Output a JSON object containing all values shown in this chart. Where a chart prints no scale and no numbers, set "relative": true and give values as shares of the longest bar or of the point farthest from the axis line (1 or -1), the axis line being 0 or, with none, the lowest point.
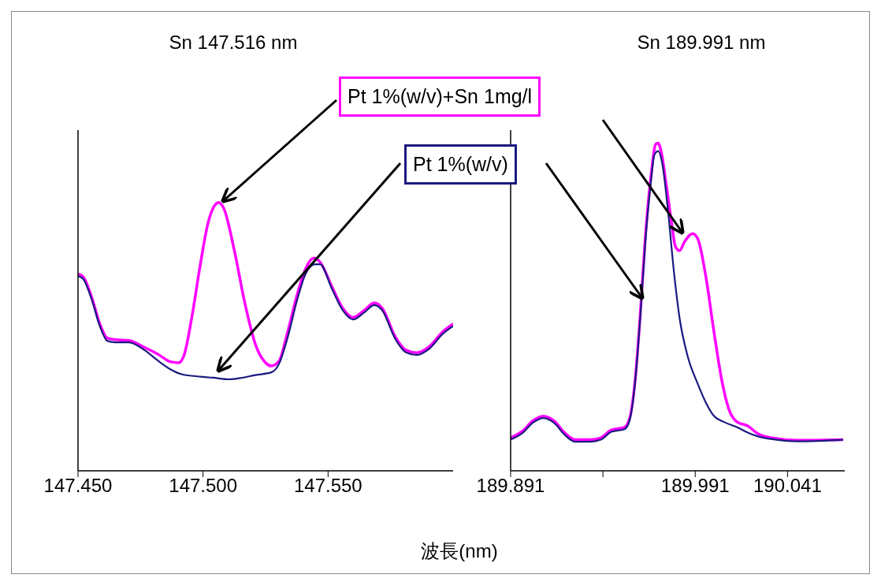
{
  "chart_data": [
    {
      "type": "line",
      "title": "Sn 147.516 nm",
      "xlabel": "波長(nm)",
      "relative": true,
      "xlim": [
        147.45,
        147.6
      ],
      "xticks": [
        {
          "value": 147.45,
          "label": "147.450"
        },
        {
          "value": 147.5,
          "label": "147.500"
        },
        {
          "value": 147.55,
          "label": "147.550"
        }
      ],
      "series": [
        {
          "name": "Pt 1%(w/v)+Sn 1mg/l",
          "color": "#ff00ff",
          "x": [
            147.45,
            147.452,
            147.4555,
            147.4587,
            147.4618,
            147.465,
            147.4703,
            147.4766,
            147.4819,
            147.4872,
            147.4903,
            147.4924,
            147.4956,
            147.4988,
            147.5019,
            147.5056,
            147.5062,
            147.5083,
            147.5125,
            147.5167,
            147.521,
            147.5252,
            147.5273,
            147.5305,
            147.5336,
            147.5379,
            147.541,
            147.5442,
            147.5468,
            147.5516,
            147.5558,
            147.56,
            147.5643,
            147.5685,
            147.5716,
            147.5769,
            147.5811,
            147.5854,
            147.5907,
            147.5959,
            147.6
          ],
          "values": [
            0.734,
            0.724,
            0.646,
            0.548,
            0.494,
            0.489,
            0.486,
            0.46,
            0.435,
            0.406,
            0.403,
            0.431,
            0.577,
            0.763,
            0.92,
            0.998,
            1,
            0.978,
            0.822,
            0.626,
            0.47,
            0.401,
            0.391,
            0.411,
            0.509,
            0.665,
            0.753,
            0.793,
            0.778,
            0.685,
            0.607,
            0.572,
            0.597,
            0.626,
            0.607,
            0.499,
            0.45,
            0.44,
            0.465,
            0.519,
            0.548
          ]
        },
        {
          "name": "Pt 1%(w/v)",
          "color": "#1a1a80",
          "x": [
            147.45,
            147.452,
            147.4555,
            147.4587,
            147.4618,
            147.465,
            147.4703,
            147.4766,
            147.4819,
            147.4872,
            147.4914,
            147.4977,
            147.504,
            147.5104,
            147.5157,
            147.521,
            147.5273,
            147.5305,
            147.5336,
            147.5379,
            147.541,
            147.5447,
            147.5468,
            147.5516,
            147.5558,
            147.56,
            147.5643,
            147.5685,
            147.5716,
            147.5769,
            147.5811,
            147.5854,
            147.5907,
            147.5959,
            147.6
          ],
          "values": [
            0.726,
            0.716,
            0.638,
            0.54,
            0.484,
            0.479,
            0.479,
            0.45,
            0.411,
            0.377,
            0.36,
            0.352,
            0.347,
            0.341,
            0.347,
            0.357,
            0.367,
            0.401,
            0.489,
            0.646,
            0.734,
            0.77,
            0.77,
            0.677,
            0.599,
            0.564,
            0.589,
            0.618,
            0.599,
            0.491,
            0.442,
            0.432,
            0.457,
            0.511,
            0.54
          ]
        }
      ]
    },
    {
      "type": "line",
      "title": "Sn 189.991 nm",
      "relative": true,
      "xlim": [
        189.891,
        190.072
      ],
      "xticks": [
        {
          "value": 189.891,
          "label": "189.891"
        },
        {
          "value": 189.941,
          "label": null
        },
        {
          "value": 189.991,
          "label": "189.991"
        },
        {
          "value": 190.041,
          "label": "190.041"
        }
      ],
      "series": [
        {
          "color": "#ff00ff",
          "x": [
            189.891,
            189.8974,
            189.9031,
            189.9087,
            189.9144,
            189.9201,
            189.9258,
            189.9343,
            189.9399,
            189.9456,
            189.9527,
            189.9555,
            189.9584,
            189.9612,
            189.964,
            189.9669,
            189.9697,
            189.9709,
            189.9726,
            189.9754,
            189.9782,
            189.9803,
            189.9825,
            189.9853,
            189.9896,
            189.9924,
            189.9967,
            190.0009,
            190.0052,
            190.0094,
            190.0137,
            190.0194,
            190.025,
            190.0321,
            190.0463,
            190.0711
          ],
          "values": [
            0.101,
            0.121,
            0.153,
            0.167,
            0.153,
            0.117,
            0.095,
            0.095,
            0.101,
            0.125,
            0.133,
            0.161,
            0.274,
            0.475,
            0.716,
            0.893,
            0.998,
            1,
            0.973,
            0.869,
            0.756,
            0.684,
            0.672,
            0.7,
            0.724,
            0.708,
            0.595,
            0.434,
            0.282,
            0.185,
            0.149,
            0.137,
            0.113,
            0.101,
            0.093,
            0.095
          ]
        },
        {
          "color": "#1a1a80",
          "x": [
            189.891,
            189.8974,
            189.9031,
            189.9087,
            189.9144,
            189.9201,
            189.9258,
            189.9343,
            189.9399,
            189.9456,
            189.9527,
            189.9555,
            189.9584,
            189.9612,
            189.964,
            189.9669,
            189.9689,
            189.9709,
            189.9733,
            189.9762,
            189.9797,
            189.9825,
            189.9867,
            189.9924,
            189.9967,
            190.0009,
            190.0066,
            190.0137,
            190.0194,
            190.025,
            190.0321,
            190.0463,
            190.0711
          ],
          "values": [
            0.095,
            0.115,
            0.147,
            0.161,
            0.147,
            0.111,
            0.089,
            0.089,
            0.095,
            0.119,
            0.127,
            0.155,
            0.268,
            0.467,
            0.7,
            0.877,
            0.965,
            0.976,
            0.933,
            0.796,
            0.595,
            0.467,
            0.354,
            0.265,
            0.209,
            0.169,
            0.149,
            0.133,
            0.117,
            0.105,
            0.097,
            0.09,
            0.095
          ]
        }
      ]
    }
  ]
}
